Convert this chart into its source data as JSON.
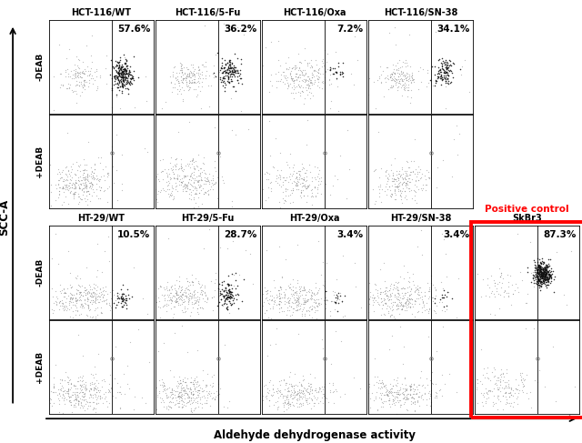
{
  "xlabel": "Aldehyde dehydrogenase activity",
  "ylabel": "SCC-A",
  "col_titles_row1": [
    "HCT-116/WT",
    "HCT-116/5-Fu",
    "HCT-116/Oxa",
    "HCT-116/SN-38"
  ],
  "col_titles_row2": [
    "HT-29/WT",
    "HT-29/5-Fu",
    "HT-29/Oxa",
    "HT-29/SN-38"
  ],
  "positive_control_title": "SkBr3",
  "positive_control_label": "Positive control",
  "row_labels": [
    "-DEAB",
    "+DEAB",
    "-DEAB",
    "+DEAB"
  ],
  "percentages_row1": [
    "57.6%",
    "36.2%",
    "7.2%",
    "34.1%"
  ],
  "percentages_row2": [
    "10.5%",
    "28.7%",
    "3.4%",
    "3.4%",
    "87.3%"
  ]
}
